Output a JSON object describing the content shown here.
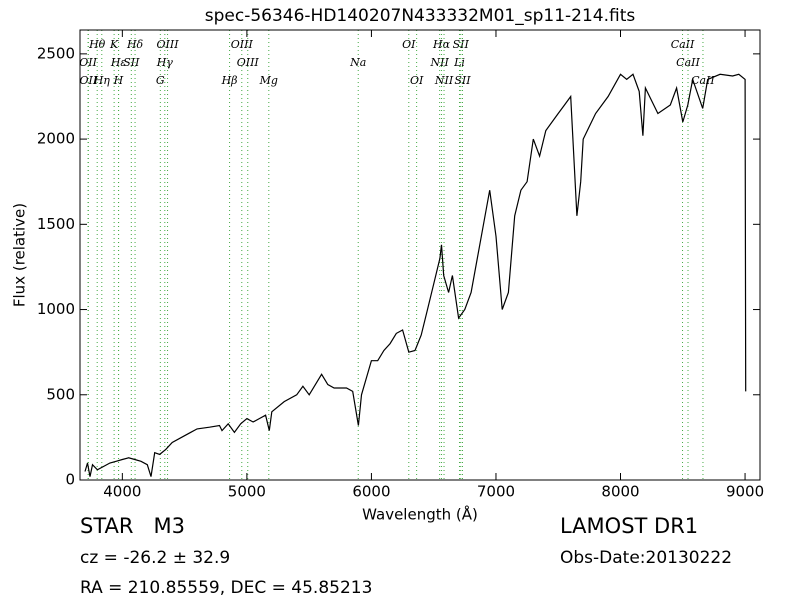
{
  "chart_data": {
    "type": "line",
    "title": "spec-56346-HD140207N433332M01_sp11-214.fits",
    "x_label": "Wavelength (Å)",
    "y_label": "Flux (relative)",
    "xlim": [
      3660,
      9120
    ],
    "ylim": [
      0,
      2640
    ],
    "xticks": [
      4000,
      5000,
      6000,
      7000,
      8000,
      9000
    ],
    "yticks": [
      0,
      500,
      1000,
      1500,
      2000,
      2500
    ],
    "color": "#000000",
    "line_color": "#44aa44",
    "x": [
      3700,
      3720,
      3740,
      3760,
      3800,
      3850,
      3900,
      3950,
      4000,
      4050,
      4100,
      4150,
      4200,
      4230,
      4260,
      4300,
      4350,
      4400,
      4500,
      4550,
      4600,
      4700,
      4780,
      4800,
      4850,
      4900,
      4950,
      5000,
      5050,
      5100,
      5150,
      5180,
      5200,
      5300,
      5400,
      5450,
      5500,
      5600,
      5650,
      5700,
      5800,
      5850,
      5895,
      5920,
      6000,
      6050,
      6100,
      6150,
      6200,
      6250,
      6300,
      6350,
      6400,
      6450,
      6500,
      6550,
      6563,
      6580,
      6620,
      6650,
      6700,
      6750,
      6800,
      6850,
      6900,
      6950,
      7000,
      7050,
      7100,
      7150,
      7200,
      7250,
      7300,
      7350,
      7400,
      7500,
      7550,
      7600,
      7650,
      7680,
      7700,
      7800,
      7900,
      8000,
      8050,
      8100,
      8150,
      8180,
      8200,
      8300,
      8400,
      8450,
      8500,
      8540,
      8580,
      8660,
      8700,
      8800,
      8900,
      8950,
      9000,
      9005
    ],
    "values": [
      50,
      100,
      20,
      90,
      60,
      80,
      100,
      110,
      120,
      130,
      120,
      110,
      90,
      20,
      160,
      150,
      180,
      220,
      260,
      280,
      300,
      310,
      320,
      290,
      330,
      280,
      330,
      360,
      340,
      360,
      380,
      290,
      400,
      460,
      500,
      550,
      500,
      620,
      560,
      540,
      540,
      520,
      320,
      500,
      700,
      700,
      760,
      800,
      860,
      880,
      750,
      760,
      850,
      1000,
      1150,
      1300,
      1380,
      1200,
      1100,
      1200,
      950,
      1000,
      1100,
      1300,
      1500,
      1700,
      1430,
      1000,
      1100,
      1550,
      1700,
      1750,
      2000,
      1900,
      2050,
      2150,
      2200,
      2250,
      1550,
      1750,
      2000,
      2150,
      2250,
      2380,
      2350,
      2380,
      2280,
      2020,
      2300,
      2150,
      2200,
      2300,
      2100,
      2200,
      2350,
      2180,
      2350,
      2380,
      2370,
      2380,
      2350,
      520
    ],
    "lines": [
      {
        "label": "OII",
        "wavelength": 3725
      },
      {
        "label": "OII",
        "wavelength": 3727
      },
      {
        "label": "Hθ",
        "wavelength": 3798
      },
      {
        "label": "Hη",
        "wavelength": 3835
      },
      {
        "label": "K",
        "wavelength": 3934
      },
      {
        "label": "H",
        "wavelength": 3969
      },
      {
        "label": "Hε",
        "wavelength": 3970
      },
      {
        "label": "SII",
        "wavelength": 4072
      },
      {
        "label": "Hδ",
        "wavelength": 4102
      },
      {
        "label": "G",
        "wavelength": 4305
      },
      {
        "label": "Hγ",
        "wavelength": 4341
      },
      {
        "label": "OIII",
        "wavelength": 4363
      },
      {
        "label": "Hβ",
        "wavelength": 4861
      },
      {
        "label": "OIII",
        "wavelength": 4959
      },
      {
        "label": "OIII",
        "wavelength": 5007
      },
      {
        "label": "Mg",
        "wavelength": 5176
      },
      {
        "label": "Na",
        "wavelength": 5894
      },
      {
        "label": "OI",
        "wavelength": 6300
      },
      {
        "label": "OI",
        "wavelength": 6363
      },
      {
        "label": "NII",
        "wavelength": 6548
      },
      {
        "label": "Hα",
        "wavelength": 6563
      },
      {
        "label": "NII",
        "wavelength": 6583
      },
      {
        "label": "Li",
        "wavelength": 6707
      },
      {
        "label": "SII",
        "wavelength": 6717
      },
      {
        "label": "SII",
        "wavelength": 6731
      },
      {
        "label": "CaII",
        "wavelength": 8498
      },
      {
        "label": "CaII",
        "wavelength": 8542
      },
      {
        "label": "CaII",
        "wavelength": 8662
      }
    ]
  },
  "info": {
    "object": "STAR   M3",
    "cz": "cz = -26.2 ± 32.9",
    "coords": "RA = 210.85559, DEC = 45.85213",
    "survey": "LAMOST DR1",
    "obs_date": "Obs-Date:20130222"
  }
}
